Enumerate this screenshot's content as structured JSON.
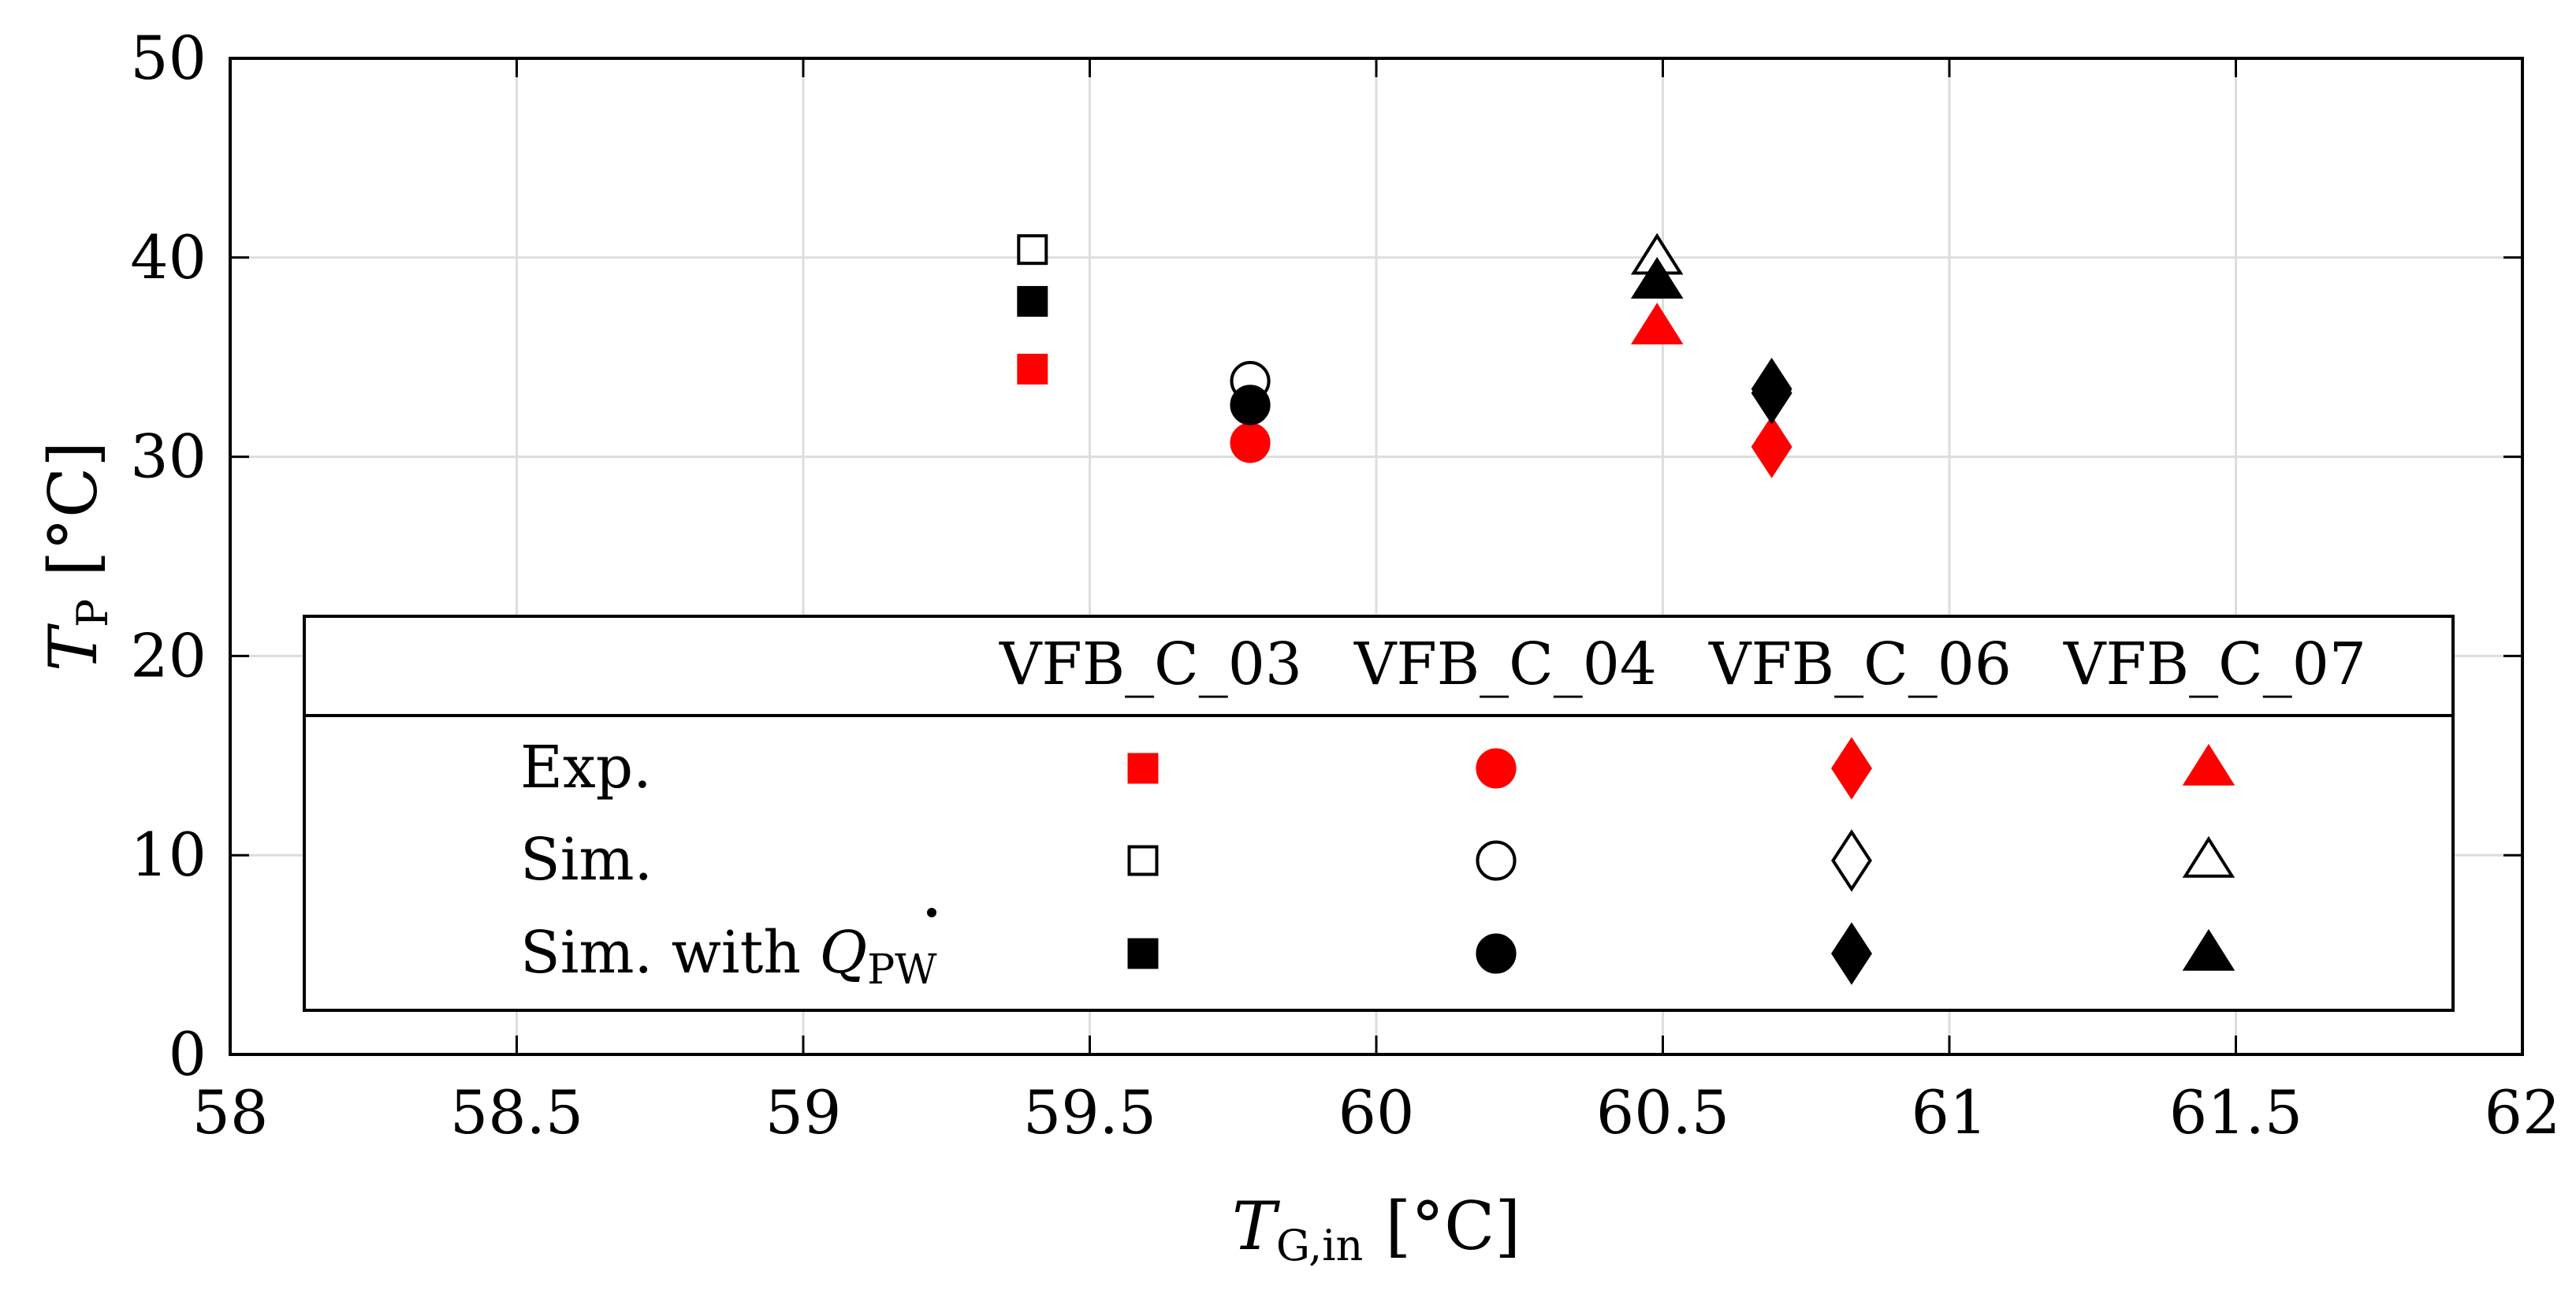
{
  "chart_data": {
    "type": "scatter",
    "title": "",
    "xlabel": {
      "main": "T",
      "sub": "G,in",
      "unit": "[°C]"
    },
    "ylabel": {
      "main": "T",
      "sub": "P",
      "unit": "[°C]"
    },
    "xlim": [
      58,
      62
    ],
    "ylim": [
      0,
      50
    ],
    "xticks": [
      58,
      58.5,
      59,
      59.5,
      60,
      60.5,
      61,
      61.5,
      62
    ],
    "xtick_labels": [
      "58",
      "58.5",
      "59",
      "59.5",
      "60",
      "60.5",
      "61",
      "61.5",
      "62"
    ],
    "yticks": [
      0,
      10,
      20,
      30,
      40,
      50
    ],
    "ytick_labels": [
      "0",
      "10",
      "20",
      "30",
      "40",
      "50"
    ],
    "grid": true,
    "legend_position": "bottom",
    "cases": [
      {
        "name": "VFB_C_03",
        "marker": "square",
        "x": 59.4,
        "exp": 34.4,
        "sim": 40.4,
        "sim_qpw": 37.8
      },
      {
        "name": "VFB_C_04",
        "marker": "circle",
        "x": 59.78,
        "exp": 30.7,
        "sim": 33.8,
        "sim_qpw": 32.6
      },
      {
        "name": "VFB_C_06",
        "marker": "diamond",
        "x": 60.69,
        "exp": 30.5,
        "sim": 33.4,
        "sim_qpw": 33.2
      },
      {
        "name": "VFB_C_07",
        "marker": "triangle",
        "x": 60.49,
        "exp": 36.5,
        "sim": 40.0,
        "sim_qpw": 38.8
      }
    ],
    "series": [
      {
        "key": "exp",
        "name": "Exp.",
        "color": "#ff0000",
        "fill": "#ff0000"
      },
      {
        "key": "sim",
        "name": "Sim.",
        "color": "#000000",
        "fill": "none"
      },
      {
        "key": "sim_qpw",
        "name": "Sim. with",
        "name_symbol": "Q",
        "name_sub": "PW",
        "color": "#000000",
        "fill": "#000000"
      }
    ]
  }
}
